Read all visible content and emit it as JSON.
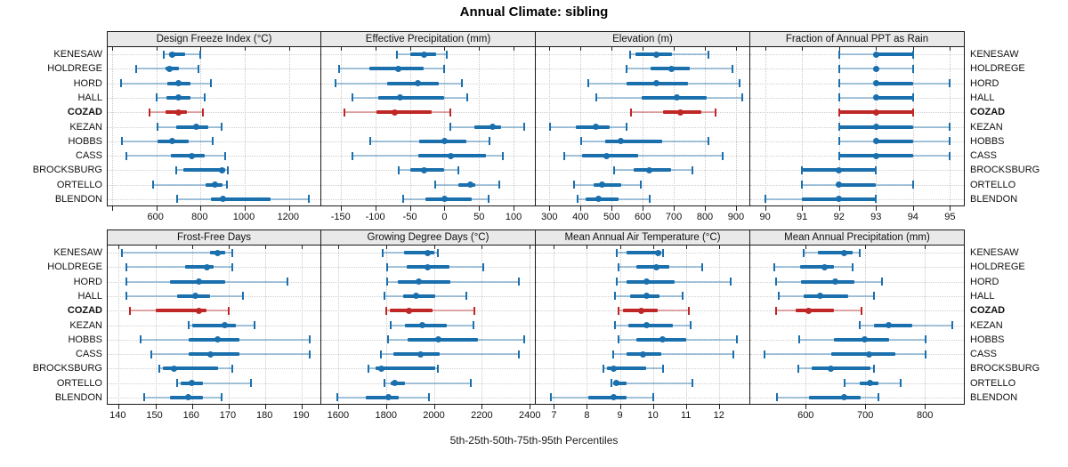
{
  "title": "Annual Climate: sibling",
  "xlabel": "5th-25th-50th-75th-95th Percentiles",
  "chart_data": {
    "type": "dotplot",
    "layout": "lattice 2 rows x 4 columns, shared site axis, whiskers show 5th-95th, thick bar 25th-75th, dot = median",
    "title": "Annual Climate: sibling",
    "xlabel": "5th-25th-50th-75th-95th Percentiles",
    "grid": true,
    "legend_position": "none",
    "categories": [
      "KENESAW",
      "HOLDREGE",
      "HORD",
      "HALL",
      "COZAD",
      "KEZAN",
      "HOBBS",
      "CASS",
      "BROCKSBURG",
      "ORTELLO",
      "BLENDON"
    ],
    "highlight_category": "COZAD",
    "percentiles": [
      5,
      25,
      50,
      75,
      95
    ],
    "colors": {
      "series": "#1a6fad",
      "series_light": "rgba(26,111,173,0.38)",
      "highlight": "#bf2726",
      "highlight_light": "rgba(191,39,38,0.38)",
      "header_bg": "#e9e9e9",
      "panel_border": "#1a1a1a",
      "grid": "#c9c9c9"
    },
    "panels": [
      {
        "title": "Design Freeze Index (°C)",
        "xlim": [
          380,
          1350
        ],
        "ticks": [
          600,
          800,
          1000,
          1200
        ],
        "minor_ticks": [
          400
        ],
        "values": [
          [
            635,
            657,
            672,
            730,
            800
          ],
          [
            510,
            640,
            660,
            700,
            790
          ],
          [
            440,
            650,
            700,
            755,
            845
          ],
          [
            600,
            645,
            700,
            755,
            820
          ],
          [
            570,
            640,
            700,
            740,
            810
          ],
          [
            605,
            690,
            780,
            835,
            895
          ],
          [
            445,
            605,
            670,
            745,
            855
          ],
          [
            465,
            665,
            760,
            820,
            910
          ],
          [
            690,
            722,
            898,
            912,
            925
          ],
          [
            585,
            822,
            866,
            900,
            920
          ],
          [
            695,
            845,
            900,
            1115,
            1290
          ]
        ]
      },
      {
        "title": "Effective Precipitation (mm)",
        "xlim": [
          -178,
          132
        ],
        "ticks": [
          -150,
          -100,
          -50,
          0,
          50,
          100
        ],
        "minor_ticks": [],
        "values": [
          [
            -69,
            -49,
            -30,
            -12,
            3
          ],
          [
            -152,
            -108,
            -67,
            -30,
            0
          ],
          [
            -157,
            -83,
            -38,
            -8,
            25
          ],
          [
            -133,
            -96,
            -64,
            0,
            33
          ],
          [
            -145,
            -98,
            -72,
            -19,
            8
          ],
          [
            9,
            43,
            70,
            82,
            115
          ],
          [
            -107,
            -36,
            0,
            32,
            65
          ],
          [
            -133,
            -38,
            9,
            60,
            85
          ],
          [
            -66,
            -49,
            -30,
            0,
            20
          ],
          [
            -13,
            20,
            37,
            45,
            79
          ],
          [
            -60,
            -27,
            0,
            39,
            64
          ]
        ]
      },
      {
        "title": "Elevation (m)",
        "xlim": [
          256,
          946
        ],
        "ticks": [
          300,
          400,
          500,
          600,
          700,
          800,
          900
        ],
        "minor_ticks": [],
        "values": [
          [
            560,
            577,
            643,
            694,
            811
          ],
          [
            548,
            626,
            692,
            751,
            890
          ],
          [
            425,
            547,
            643,
            745,
            911
          ],
          [
            450,
            597,
            710,
            807,
            920
          ],
          [
            561,
            666,
            720,
            790,
            834
          ],
          [
            303,
            385,
            450,
            494,
            547
          ],
          [
            401,
            478,
            528,
            664,
            811
          ],
          [
            348,
            404,
            483,
            585,
            856
          ],
          [
            509,
            570,
            621,
            690,
            761
          ],
          [
            378,
            442,
            470,
            530,
            594
          ],
          [
            390,
            416,
            459,
            523,
            623
          ]
        ]
      },
      {
        "title": "Fraction of Annual PPT as Rain",
        "xlim": [
          89.6,
          95.4
        ],
        "ticks": [
          90,
          91,
          92,
          93,
          94,
          95
        ],
        "minor_ticks": [],
        "values": [
          [
            92,
            93,
            93,
            94,
            94
          ],
          [
            92,
            93,
            93,
            93,
            94
          ],
          [
            92,
            93,
            93,
            94,
            95
          ],
          [
            92,
            93,
            93,
            94,
            94
          ],
          [
            92,
            92,
            93,
            94,
            94
          ],
          [
            92,
            92,
            93,
            94,
            95
          ],
          [
            92,
            93,
            93,
            94,
            95
          ],
          [
            92,
            92,
            93,
            94,
            95
          ],
          [
            91,
            91,
            92,
            93,
            93
          ],
          [
            91,
            92,
            92,
            93,
            94
          ],
          [
            90,
            91,
            92,
            93,
            93
          ]
        ]
      },
      {
        "title": "Frost-Free Days",
        "xlim": [
          137,
          195.5
        ],
        "ticks": [
          140,
          150,
          160,
          170,
          180,
          190
        ],
        "minor_ticks": [],
        "values": [
          [
            141,
            165,
            167,
            169,
            171
          ],
          [
            142,
            158,
            164,
            166,
            171
          ],
          [
            142,
            154,
            162,
            169,
            186
          ],
          [
            142,
            156,
            161,
            165,
            174
          ],
          [
            143,
            150,
            162,
            164,
            170
          ],
          [
            159,
            160,
            169,
            172,
            177
          ],
          [
            146,
            159,
            167,
            173,
            192
          ],
          [
            149,
            159,
            165,
            173,
            192
          ],
          [
            151,
            152,
            155,
            167,
            171
          ],
          [
            156,
            157,
            160,
            163,
            176
          ],
          [
            147,
            154,
            159,
            163,
            168
          ]
        ]
      },
      {
        "title": "Growing Degree Days (°C)",
        "xlim": [
          1530,
          2425
        ],
        "ticks": [
          1600,
          1800,
          2000,
          2200,
          2400
        ],
        "minor_ticks": [],
        "values": [
          [
            1785,
            1875,
            1975,
            2000,
            2015
          ],
          [
            1805,
            1885,
            1975,
            2065,
            2205
          ],
          [
            1805,
            1850,
            1935,
            2070,
            2355
          ],
          [
            1795,
            1870,
            1925,
            2005,
            2135
          ],
          [
            1800,
            1815,
            1895,
            1995,
            2170
          ],
          [
            1820,
            1880,
            1950,
            2055,
            2165
          ],
          [
            1810,
            1890,
            2020,
            2185,
            2375
          ],
          [
            1780,
            1830,
            1945,
            2025,
            2355
          ],
          [
            1727,
            1755,
            1780,
            2005,
            2015
          ],
          [
            1795,
            1820,
            1835,
            1878,
            2155
          ],
          [
            1595,
            1717,
            1812,
            1853,
            1980
          ]
        ]
      },
      {
        "title": "Mean Annual Air Temperature (°C)",
        "xlim": [
          6.45,
          12.95
        ],
        "ticks": [
          7,
          8,
          9,
          10,
          11,
          12
        ],
        "minor_ticks": [],
        "values": [
          [
            8.9,
            9.2,
            10.15,
            10.25,
            10.3
          ],
          [
            8.95,
            9.5,
            10.1,
            10.5,
            11.5
          ],
          [
            8.9,
            9.2,
            9.8,
            10.65,
            12.35
          ],
          [
            8.85,
            9.3,
            9.8,
            10.2,
            10.9
          ],
          [
            8.95,
            9.1,
            9.65,
            10.15,
            11.1
          ],
          [
            8.85,
            9.25,
            9.8,
            10.6,
            11.15
          ],
          [
            8.95,
            9.5,
            10.3,
            11.0,
            12.55
          ],
          [
            8.8,
            9.2,
            9.7,
            10.25,
            12.45
          ],
          [
            8.5,
            8.6,
            8.8,
            9.8,
            10.3
          ],
          [
            8.75,
            8.8,
            8.9,
            9.2,
            11.2
          ],
          [
            6.9,
            8.05,
            8.8,
            9.2,
            10.0
          ]
        ]
      },
      {
        "title": "Mean Annual Precipitation (mm)",
        "xlim": [
          507,
          867
        ],
        "ticks": [
          600,
          700,
          800
        ],
        "minor_ticks": [],
        "values": [
          [
            596,
            621,
            664,
            679,
            691
          ],
          [
            548,
            590,
            632,
            647,
            679
          ],
          [
            550,
            592,
            650,
            682,
            728
          ],
          [
            555,
            597,
            625,
            672,
            714
          ],
          [
            550,
            583,
            605,
            647,
            694
          ],
          [
            690,
            714,
            740,
            779,
            846
          ],
          [
            589,
            647,
            699,
            740,
            801
          ],
          [
            531,
            643,
            707,
            750,
            802
          ],
          [
            588,
            610,
            642,
            708,
            715
          ],
          [
            666,
            691,
            708,
            722,
            760
          ],
          [
            552,
            605,
            664,
            692,
            722
          ]
        ]
      }
    ]
  }
}
